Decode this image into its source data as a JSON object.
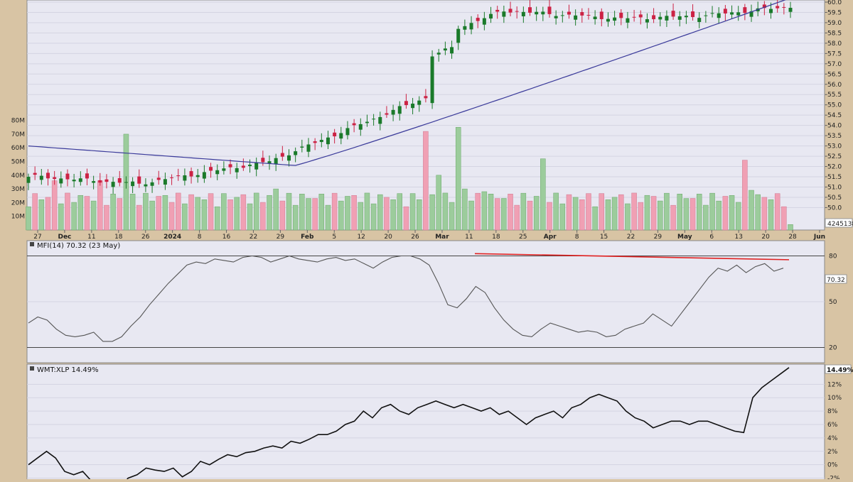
{
  "colors": {
    "background": "#d8c4a4",
    "panel": "#e8e8f2",
    "up_candle": "#1a7a2a",
    "down_candle": "#cc2244",
    "up_volume": "#9ccc9c",
    "down_volume": "#f0a0b4",
    "moving_average": "#3a3a9a",
    "mfi_line": "#555555",
    "divergence_line": "#e02020",
    "ratio_line": "#111111"
  },
  "chart_data": [
    {
      "type": "candlestick",
      "panel": "price",
      "x_axis_labels": [
        "27",
        "Dec",
        "11",
        "18",
        "26",
        "2024",
        "8",
        "16",
        "22",
        "29",
        "Feb",
        "5",
        "12",
        "20",
        "26",
        "Mar",
        "11",
        "18",
        "25",
        "Apr",
        "8",
        "15",
        "22",
        "29",
        "May",
        "6",
        "13",
        "20",
        "28",
        "Jun"
      ],
      "y_ticks": [
        "50.0",
        "50.5",
        "51.0",
        "51.5",
        "52.0",
        "52.5",
        "53.0",
        "53.5",
        "54.0",
        "54.5",
        "55.0",
        "55.5",
        "56.0",
        "56.5",
        "57.0",
        "57.5",
        "58.0",
        "58.5",
        "59.0",
        "59.5",
        "60.0"
      ],
      "ylim": [
        49.6,
        60.0
      ],
      "volume_ticks": [
        "10M",
        "20M",
        "30M",
        "40M",
        "50M",
        "60M",
        "70M",
        "80M"
      ],
      "volume_ylim": [
        0,
        85
      ],
      "volume_readout": "4245138",
      "moving_average_start": 53.0,
      "moving_average_min": 52.05,
      "moving_average_end": 60.2,
      "last_close": 59.7,
      "price_start": 51.5
    },
    {
      "type": "line",
      "panel": "mfi",
      "legend": "MFI(14) 70.32 (23 May)",
      "value_badge": "70.32",
      "y_ticks": [
        "20",
        "50",
        "80"
      ],
      "ylim": [
        10,
        90
      ],
      "values": [
        36,
        40,
        38,
        32,
        28,
        27,
        28,
        30,
        24,
        24,
        27,
        34,
        40,
        48,
        55,
        62,
        68,
        74,
        76,
        75,
        78,
        77,
        76,
        79,
        80,
        79,
        76,
        78,
        80,
        78,
        77,
        76,
        78,
        79,
        77,
        78,
        75,
        72,
        76,
        79,
        80,
        80,
        78,
        74,
        62,
        48,
        46,
        52,
        60,
        56,
        46,
        38,
        32,
        28,
        27,
        32,
        36,
        34,
        32,
        30,
        31,
        30,
        27,
        28,
        32,
        34,
        36,
        42,
        38,
        34,
        42,
        50,
        58,
        66,
        72,
        70,
        74,
        69,
        73,
        75,
        70,
        72
      ],
      "divergence_line": {
        "from": 81.5,
        "to": 77.5
      }
    },
    {
      "type": "line",
      "panel": "ratio",
      "legend": "WMT:XLP 14.49%",
      "value_badge": "14.49%",
      "y_ticks": [
        "-2%",
        "0%",
        "2%",
        "4%",
        "6%",
        "8%",
        "10%",
        "12%"
      ],
      "ylim": [
        -3,
        15
      ],
      "values": [
        0,
        1,
        2,
        1,
        -1,
        -1.5,
        -1,
        -2.5,
        -3.5,
        -4,
        -3.8,
        -2,
        -1.5,
        -0.5,
        -0.8,
        -1,
        -0.5,
        -1.8,
        -1,
        0.5,
        0,
        0.8,
        1.5,
        1.2,
        1.8,
        2,
        2.5,
        2.8,
        2.5,
        3.5,
        3.2,
        3.8,
        4.5,
        4.5,
        5,
        6,
        6.5,
        8,
        7,
        8.5,
        9,
        8,
        7.5,
        8.5,
        9,
        9.5,
        9,
        8.5,
        9,
        8.5,
        8,
        8.5,
        7.5,
        8,
        7,
        6,
        7,
        7.5,
        8,
        7,
        8.5,
        9,
        10,
        10.5,
        10,
        9.5,
        8,
        7,
        6.5,
        5.5,
        6,
        6.5,
        6.5,
        6,
        6.5,
        6.5,
        6,
        5.5,
        5,
        4.8,
        10,
        11.5,
        12.5,
        13.5,
        14.49
      ]
    }
  ]
}
